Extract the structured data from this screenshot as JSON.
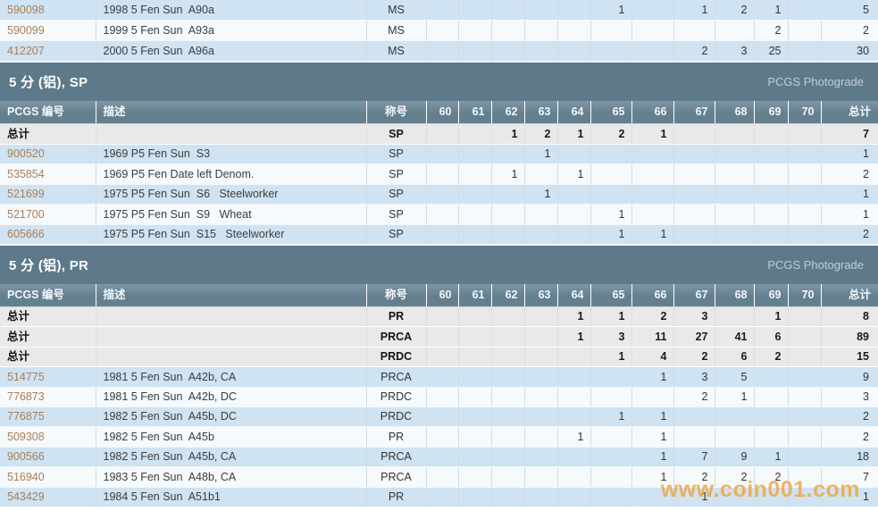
{
  "palette": {
    "band_bg": "#5e7a8a",
    "header_top": "#7f95a5",
    "header_bottom": "#64808f",
    "row_blue": "#cfe3f2",
    "row_white": "#f7fafc",
    "row_totals": "#e9e9e9",
    "link": "#a97e58",
    "photograde": "#bfccd6",
    "watermark": "#f0a53f"
  },
  "columns": {
    "pcgs": "PCGS 编号",
    "desc": "描述",
    "designation": "称号",
    "grades": [
      "60",
      "61",
      "62",
      "63",
      "64",
      "65",
      "66",
      "67",
      "68",
      "69",
      "70"
    ],
    "total": "总计"
  },
  "watermark": "www.coin001.com",
  "sections": [
    {
      "kind": "rows",
      "rows": [
        {
          "type": "data",
          "pcgs": "590098",
          "desc": "1998 5 Fen Sun  A90a",
          "grade": "MS",
          "counts": [
            "",
            "",
            "",
            "",
            "",
            "1",
            "",
            "1",
            "2",
            "1",
            ""
          ],
          "total": "5",
          "shade": "blue"
        },
        {
          "type": "data",
          "pcgs": "590099",
          "desc": "1999 5 Fen Sun  A93a",
          "grade": "MS",
          "counts": [
            "",
            "",
            "",
            "",
            "",
            "",
            "",
            "",
            "",
            "2",
            ""
          ],
          "total": "2",
          "shade": "white"
        },
        {
          "type": "data",
          "pcgs": "412207",
          "desc": "2000 5 Fen Sun  A96a",
          "grade": "MS",
          "counts": [
            "",
            "",
            "",
            "",
            "",
            "",
            "",
            "2",
            "3",
            "25",
            ""
          ],
          "total": "30",
          "shade": "blue"
        }
      ]
    },
    {
      "kind": "band",
      "title": "5 分 (铝), SP",
      "right_label": "PCGS Photograde"
    },
    {
      "kind": "table",
      "cls": "t-sp",
      "rows": [
        {
          "type": "totals",
          "label": "总计",
          "desc": "",
          "grade": "SP",
          "counts": [
            "",
            "",
            "1",
            "2",
            "1",
            "2",
            "1",
            "",
            "",
            "",
            ""
          ],
          "total": "7"
        },
        {
          "type": "data",
          "pcgs": "900520",
          "desc": "1969 P5 Fen Sun  S3",
          "grade": "SP",
          "counts": [
            "",
            "",
            "",
            "1",
            "",
            "",
            "",
            "",
            "",
            "",
            ""
          ],
          "total": "1",
          "shade": "blue"
        },
        {
          "type": "data",
          "pcgs": "535854",
          "desc": "1969 P5 Fen Date left Denom.",
          "grade": "SP",
          "counts": [
            "",
            "",
            "1",
            "",
            "1",
            "",
            "",
            "",
            "",
            "",
            ""
          ],
          "total": "2",
          "shade": "white"
        },
        {
          "type": "data",
          "pcgs": "521699",
          "desc": "1975 P5 Fen Sun  S6   Steelworker",
          "grade": "SP",
          "counts": [
            "",
            "",
            "",
            "1",
            "",
            "",
            "",
            "",
            "",
            "",
            ""
          ],
          "total": "1",
          "shade": "blue"
        },
        {
          "type": "data",
          "pcgs": "521700",
          "desc": "1975 P5 Fen Sun  S9   Wheat",
          "grade": "SP",
          "counts": [
            "",
            "",
            "",
            "",
            "",
            "1",
            "",
            "",
            "",
            "",
            ""
          ],
          "total": "1",
          "shade": "white"
        },
        {
          "type": "data",
          "pcgs": "605666",
          "desc": "1975 P5 Fen Sun  S15   Steelworker",
          "grade": "SP",
          "counts": [
            "",
            "",
            "",
            "",
            "",
            "1",
            "1",
            "",
            "",
            "",
            ""
          ],
          "total": "2",
          "shade": "blue"
        }
      ]
    },
    {
      "kind": "band",
      "title": "5 分 (铝), PR",
      "right_label": "PCGS Photograde"
    },
    {
      "kind": "table",
      "cls": "t-pr",
      "rows": [
        {
          "type": "totals",
          "label": "总计",
          "desc": "",
          "grade": "PR",
          "counts": [
            "",
            "",
            "",
            "",
            "1",
            "1",
            "2",
            "3",
            "",
            "1",
            ""
          ],
          "total": "8"
        },
        {
          "type": "totals",
          "label": "总计",
          "desc": "",
          "grade": "PRCA",
          "counts": [
            "",
            "",
            "",
            "",
            "1",
            "3",
            "11",
            "27",
            "41",
            "6",
            ""
          ],
          "total": "89"
        },
        {
          "type": "totals",
          "label": "总计",
          "desc": "",
          "grade": "PRDC",
          "counts": [
            "",
            "",
            "",
            "",
            "",
            "1",
            "4",
            "2",
            "6",
            "2",
            ""
          ],
          "total": "15"
        },
        {
          "type": "data",
          "pcgs": "514775",
          "desc": "1981 5 Fen Sun  A42b, CA",
          "grade": "PRCA",
          "counts": [
            "",
            "",
            "",
            "",
            "",
            "",
            "1",
            "3",
            "5",
            "",
            ""
          ],
          "total": "9",
          "shade": "blue"
        },
        {
          "type": "data",
          "pcgs": "776873",
          "desc": "1981 5 Fen Sun  A42b, DC",
          "grade": "PRDC",
          "counts": [
            "",
            "",
            "",
            "",
            "",
            "",
            "",
            "2",
            "1",
            "",
            ""
          ],
          "total": "3",
          "shade": "white"
        },
        {
          "type": "data",
          "pcgs": "776875",
          "desc": "1982 5 Fen Sun  A45b, DC",
          "grade": "PRDC",
          "counts": [
            "",
            "",
            "",
            "",
            "",
            "1",
            "1",
            "",
            "",
            "",
            ""
          ],
          "total": "2",
          "shade": "blue"
        },
        {
          "type": "data",
          "pcgs": "509308",
          "desc": "1982 5 Fen Sun  A45b",
          "grade": "PR",
          "counts": [
            "",
            "",
            "",
            "",
            "1",
            "",
            "1",
            "",
            "",
            "",
            ""
          ],
          "total": "2",
          "shade": "white"
        },
        {
          "type": "data",
          "pcgs": "900566",
          "desc": "1982 5 Fen Sun  A45b, CA",
          "grade": "PRCA",
          "counts": [
            "",
            "",
            "",
            "",
            "",
            "",
            "1",
            "7",
            "9",
            "1",
            ""
          ],
          "total": "18",
          "shade": "blue"
        },
        {
          "type": "data",
          "pcgs": "516940",
          "desc": "1983 5 Fen Sun  A48b, CA",
          "grade": "PRCA",
          "counts": [
            "",
            "",
            "",
            "",
            "",
            "",
            "1",
            "2",
            "2",
            "2",
            ""
          ],
          "total": "7",
          "shade": "white"
        },
        {
          "type": "data",
          "pcgs": "543429",
          "desc": "1984 5 Fen Sun  A51b1",
          "grade": "PR",
          "counts": [
            "",
            "",
            "",
            "",
            "",
            "",
            "",
            "1",
            "",
            "",
            ""
          ],
          "total": "1",
          "shade": "blue"
        }
      ]
    }
  ]
}
